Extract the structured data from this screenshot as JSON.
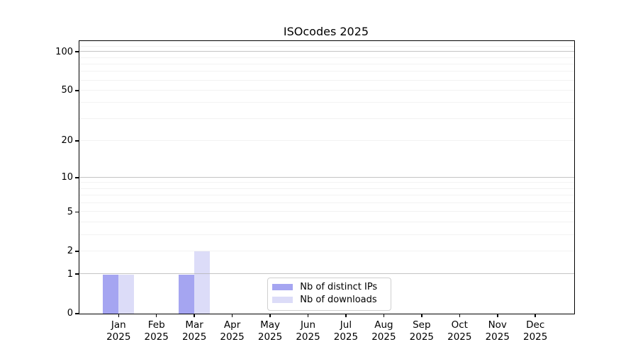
{
  "chart_data": {
    "type": "bar",
    "title": "ISOcodes 2025",
    "categories": [
      "Jan",
      "Feb",
      "Mar",
      "Apr",
      "May",
      "Jun",
      "Jul",
      "Aug",
      "Sep",
      "Oct",
      "Nov",
      "Dec"
    ],
    "year_label": "2025",
    "series": [
      {
        "name": "Nb of distinct IPs",
        "color": "#a5a5f1",
        "values": [
          1,
          0,
          1,
          0,
          0,
          0,
          0,
          0,
          0,
          0,
          0,
          0
        ]
      },
      {
        "name": "Nb of downloads",
        "color": "#dcdcf8",
        "values": [
          1,
          0,
          2,
          0,
          0,
          0,
          0,
          0,
          0,
          0,
          0,
          0
        ]
      }
    ],
    "xlabel": "",
    "ylabel": "",
    "yticks": [
      0,
      1,
      2,
      5,
      10,
      20,
      50,
      100
    ],
    "ylim": [
      0,
      120
    ],
    "scale": "log1p",
    "grid": {
      "major_values": [
        1,
        10,
        100
      ],
      "minor_values": [
        2,
        3,
        4,
        5,
        6,
        7,
        8,
        9,
        20,
        30,
        40,
        50,
        60,
        70,
        80,
        90,
        110
      ],
      "major_color": "#b0b0b0",
      "minor_color": "#f2f2f2"
    },
    "legend": {
      "position": "inside-bottom-center",
      "items": [
        "Nb of distinct IPs",
        "Nb of downloads"
      ]
    },
    "axis_color": "#000000",
    "background_color": "#ffffff"
  }
}
